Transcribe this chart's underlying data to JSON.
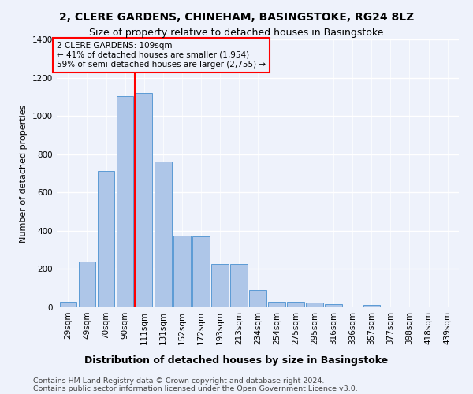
{
  "title1": "2, CLERE GARDENS, CHINEHAM, BASINGSTOKE, RG24 8LZ",
  "title2": "Size of property relative to detached houses in Basingstoke",
  "xlabel": "Distribution of detached houses by size in Basingstoke",
  "ylabel": "Number of detached properties",
  "footnote1": "Contains HM Land Registry data © Crown copyright and database right 2024.",
  "footnote2": "Contains public sector information licensed under the Open Government Licence v3.0.",
  "bar_labels": [
    "29sqm",
    "49sqm",
    "70sqm",
    "90sqm",
    "111sqm",
    "131sqm",
    "152sqm",
    "172sqm",
    "193sqm",
    "213sqm",
    "234sqm",
    "254sqm",
    "275sqm",
    "295sqm",
    "316sqm",
    "336sqm",
    "357sqm",
    "377sqm",
    "398sqm",
    "418sqm",
    "439sqm"
  ],
  "bar_values": [
    30,
    237,
    714,
    1105,
    1120,
    760,
    375,
    370,
    225,
    225,
    90,
    30,
    27,
    25,
    17,
    0,
    12,
    0,
    0,
    0,
    0
  ],
  "bar_color": "#aec6e8",
  "bar_edge_color": "#5b9bd5",
  "vline_color": "red",
  "vline_x_index": 3.5,
  "annotation_title": "2 CLERE GARDENS: 109sqm",
  "annotation_line1": "← 41% of detached houses are smaller (1,954)",
  "annotation_line2": "59% of semi-detached houses are larger (2,755) →",
  "annotation_box_color": "red",
  "ylim": [
    0,
    1400
  ],
  "yticks": [
    0,
    200,
    400,
    600,
    800,
    1000,
    1200,
    1400
  ],
  "background_color": "#eef2fb",
  "grid_color": "#ffffff",
  "title1_fontsize": 10,
  "title2_fontsize": 9,
  "xlabel_fontsize": 9,
  "ylabel_fontsize": 8,
  "tick_fontsize": 7.5,
  "footnote_fontsize": 6.8,
  "annotation_fontsize": 7.5
}
